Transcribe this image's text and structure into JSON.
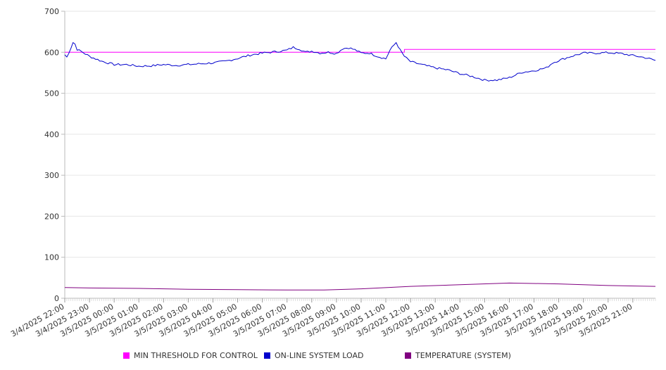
{
  "chart_data": {
    "type": "line",
    "ylim": [
      0,
      700
    ],
    "y_ticks": [
      0,
      100,
      200,
      300,
      400,
      500,
      600,
      700
    ],
    "x_tick_labels": [
      "3/4/2025 22:00",
      "3/4/2025 23:00",
      "3/5/2025 00:00",
      "3/5/2025 01:00",
      "3/5/2025 02:00",
      "3/5/2025 03:00",
      "3/5/2025 04:00",
      "3/5/2025 05:00",
      "3/5/2025 06:00",
      "3/5/2025 07:00",
      "3/5/2025 08:00",
      "3/5/2025 09:00",
      "3/5/2025 10:00",
      "3/5/2025 11:00",
      "3/5/2025 12:00",
      "3/5/2025 13:00",
      "3/5/2025 14:00",
      "3/5/2025 15:00",
      "3/5/2025 16:00",
      "3/5/2025 17:00",
      "3/5/2025 18:00",
      "3/5/2025 19:00",
      "3/5/2025 20:00",
      "3/5/2025 21:00"
    ],
    "x_range": [
      "3/4/2025 22:00",
      "3/5/2025 21:55"
    ],
    "grid": true,
    "legend_position": "bottom",
    "series": [
      {
        "name": "MIN THRESHOLD FOR CONTROL",
        "color": "#ff00ff",
        "x": [
          "3/4/2025 22:00",
          "3/5/2025 11:45",
          "3/5/2025 11:45",
          "3/5/2025 21:55"
        ],
        "values": [
          600,
          600,
          607,
          607
        ]
      },
      {
        "name": "ON-LINE SYSTEM LOAD",
        "color": "#0000cc",
        "x": [
          "3/4/2025 22:00",
          "3/4/2025 22:05",
          "3/4/2025 22:15",
          "3/4/2025 22:20",
          "3/4/2025 22:25",
          "3/4/2025 22:30",
          "3/4/2025 22:40",
          "3/4/2025 23:00",
          "3/4/2025 23:30",
          "3/5/2025 00:00",
          "3/5/2025 00:30",
          "3/5/2025 01:00",
          "3/5/2025 01:30",
          "3/5/2025 02:00",
          "3/5/2025 02:30",
          "3/5/2025 03:00",
          "3/5/2025 03:30",
          "3/5/2025 04:00",
          "3/5/2025 04:30",
          "3/5/2025 05:00",
          "3/5/2025 05:30",
          "3/5/2025 06:00",
          "3/5/2025 06:30",
          "3/5/2025 07:00",
          "3/5/2025 07:15",
          "3/5/2025 07:30",
          "3/5/2025 07:45",
          "3/5/2025 08:00",
          "3/5/2025 08:20",
          "3/5/2025 08:40",
          "3/5/2025 09:00",
          "3/5/2025 09:15",
          "3/5/2025 09:30",
          "3/5/2025 09:45",
          "3/5/2025 10:00",
          "3/5/2025 10:20",
          "3/5/2025 10:40",
          "3/5/2025 11:00",
          "3/5/2025 11:10",
          "3/5/2025 11:25",
          "3/5/2025 11:35",
          "3/5/2025 11:45",
          "3/5/2025 12:00",
          "3/5/2025 12:30",
          "3/5/2025 13:00",
          "3/5/2025 13:30",
          "3/5/2025 14:00",
          "3/5/2025 14:30",
          "3/5/2025 15:00",
          "3/5/2025 15:30",
          "3/5/2025 16:00",
          "3/5/2025 16:30",
          "3/5/2025 17:00",
          "3/5/2025 17:30",
          "3/5/2025 17:45",
          "3/5/2025 18:00",
          "3/5/2025 18:30",
          "3/5/2025 19:00",
          "3/5/2025 19:30",
          "3/5/2025 20:00",
          "3/5/2025 20:30",
          "3/5/2025 21:00",
          "3/5/2025 21:30",
          "3/5/2025 21:55"
        ],
        "values": [
          594,
          588,
          611,
          624,
          620,
          607,
          602,
          590,
          578,
          570,
          570,
          566,
          567,
          570,
          568,
          570,
          572,
          574,
          578,
          585,
          593,
          598,
          601,
          605,
          612,
          608,
          600,
          603,
          598,
          600,
          597,
          609,
          611,
          606,
          598,
          598,
          590,
          584,
          605,
          624,
          605,
          590,
          577,
          569,
          562,
          557,
          548,
          541,
          532,
          532,
          538,
          551,
          555,
          562,
          574,
          580,
          590,
          598,
          598,
          599,
          597,
          592,
          587,
          580
        ]
      },
      {
        "name": "TEMPERATURE (SYSTEM)",
        "color": "#800080",
        "x": [
          "3/4/2025 22:00",
          "3/4/2025 23:00",
          "3/5/2025 01:00",
          "3/5/2025 03:00",
          "3/5/2025 05:00",
          "3/5/2025 07:00",
          "3/5/2025 08:30",
          "3/5/2025 10:00",
          "3/5/2025 12:00",
          "3/5/2025 14:00",
          "3/5/2025 16:00",
          "3/5/2025 17:00",
          "3/5/2025 18:00",
          "3/5/2025 19:00",
          "3/5/2025 20:00",
          "3/5/2025 21:55"
        ],
        "values": [
          26,
          25,
          24,
          22,
          21,
          20,
          20,
          23,
          29,
          33,
          37,
          36,
          35,
          33,
          31,
          29
        ]
      }
    ]
  }
}
